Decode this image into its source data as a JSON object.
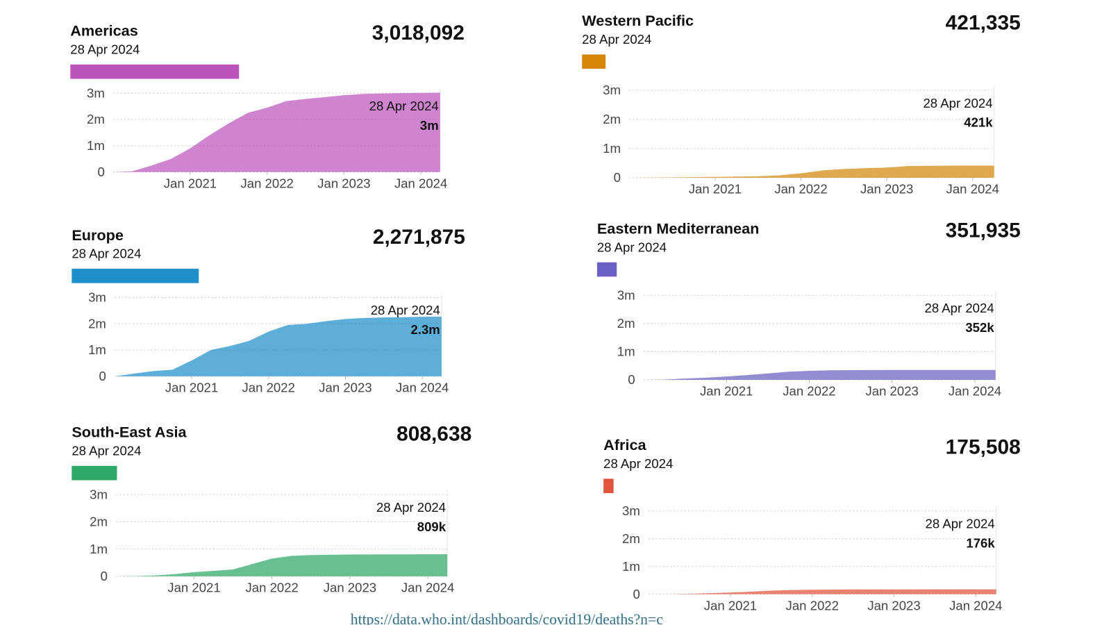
{
  "chart_data": [
    {
      "type": "area",
      "title": "Americas",
      "subtitle": "28 Apr 2024",
      "total": 3018092,
      "total_label": "3,018,092",
      "color": "#bb55bb",
      "x": [
        "2020-01",
        "2020-04",
        "2020-07",
        "2020-10",
        "2021-01",
        "2021-04",
        "2021-07",
        "2021-10",
        "2022-01",
        "2022-04",
        "2022-07",
        "2022-10",
        "2023-01",
        "2023-04",
        "2023-07",
        "2023-10",
        "2024-01",
        "2024-04"
      ],
      "values": [
        0,
        30000,
        250000,
        500000,
        900000,
        1400000,
        1850000,
        2250000,
        2450000,
        2700000,
        2780000,
        2850000,
        2920000,
        2970000,
        2990000,
        3000000,
        3010000,
        3018092
      ],
      "annotation": {
        "date": "28 Apr 2024",
        "label": "3m"
      },
      "xlim": [
        "2020-01",
        "2024-04"
      ],
      "xticks": [
        {
          "value": "2021-01",
          "label": "Jan 2021"
        },
        {
          "value": "2022-01",
          "label": "Jan 2022"
        },
        {
          "value": "2023-01",
          "label": "Jan 2023"
        },
        {
          "value": "2024-01",
          "label": "Jan 2024"
        }
      ],
      "ylim": [
        0,
        3000000
      ],
      "yticks": [
        0,
        {
          "value": 1000000,
          "label": "1m"
        },
        {
          "value": 2000000,
          "label": "2m"
        },
        {
          "value": 3000000,
          "label": "3m"
        }
      ],
      "grid": true
    },
    {
      "type": "area",
      "title": "Europe",
      "subtitle": "28 Apr 2024",
      "total": 2271875,
      "total_label": "2,271,875",
      "color": "#1f8fc9",
      "x": [
        "2020-01",
        "2020-04",
        "2020-07",
        "2020-10",
        "2021-01",
        "2021-04",
        "2021-07",
        "2021-10",
        "2022-01",
        "2022-04",
        "2022-07",
        "2022-10",
        "2023-01",
        "2023-04",
        "2023-07",
        "2023-10",
        "2024-01",
        "2024-04"
      ],
      "values": [
        0,
        100000,
        200000,
        250000,
        600000,
        1000000,
        1150000,
        1350000,
        1700000,
        1950000,
        2000000,
        2100000,
        2180000,
        2220000,
        2240000,
        2250000,
        2265000,
        2271875
      ],
      "annotation": {
        "date": "28 Apr 2024",
        "label": "2.3m"
      },
      "xlim": [
        "2020-01",
        "2024-04"
      ],
      "xticks": [
        {
          "value": "2021-01",
          "label": "Jan 2021"
        },
        {
          "value": "2022-01",
          "label": "Jan 2022"
        },
        {
          "value": "2023-01",
          "label": "Jan 2023"
        },
        {
          "value": "2024-01",
          "label": "Jan 2024"
        }
      ],
      "ylim": [
        0,
        3000000
      ],
      "yticks": [
        0,
        {
          "value": 1000000,
          "label": "1m"
        },
        {
          "value": 2000000,
          "label": "2m"
        },
        {
          "value": 3000000,
          "label": "3m"
        }
      ],
      "grid": true
    },
    {
      "type": "area",
      "title": "South-East Asia",
      "subtitle": "28 Apr 2024",
      "total": 808638,
      "total_label": "808,638",
      "color": "#2ea866",
      "x": [
        "2020-01",
        "2020-04",
        "2020-07",
        "2020-10",
        "2021-01",
        "2021-04",
        "2021-07",
        "2021-10",
        "2022-01",
        "2022-04",
        "2022-07",
        "2022-10",
        "2023-01",
        "2023-04",
        "2023-07",
        "2023-10",
        "2024-01",
        "2024-04"
      ],
      "values": [
        0,
        5000,
        30000,
        80000,
        150000,
        200000,
        250000,
        450000,
        650000,
        750000,
        780000,
        790000,
        800000,
        802000,
        804000,
        806000,
        807000,
        808638
      ],
      "annotation": {
        "date": "28 Apr 2024",
        "label": "809k"
      },
      "xlim": [
        "2020-01",
        "2024-04"
      ],
      "xticks": [
        {
          "value": "2021-01",
          "label": "Jan 2021"
        },
        {
          "value": "2022-01",
          "label": "Jan 2022"
        },
        {
          "value": "2023-01",
          "label": "Jan 2023"
        },
        {
          "value": "2024-01",
          "label": "Jan 2024"
        }
      ],
      "ylim": [
        0,
        3000000
      ],
      "yticks": [
        0,
        {
          "value": 1000000,
          "label": "1m"
        },
        {
          "value": 2000000,
          "label": "2m"
        },
        {
          "value": 3000000,
          "label": "3m"
        }
      ],
      "grid": true
    },
    {
      "type": "area",
      "title": "Western Pacific",
      "subtitle": "28 Apr 2024",
      "total": 421335,
      "total_label": "421,335",
      "color": "#d4860b",
      "x": [
        "2020-01",
        "2020-04",
        "2020-07",
        "2020-10",
        "2021-01",
        "2021-04",
        "2021-07",
        "2021-10",
        "2022-01",
        "2022-04",
        "2022-07",
        "2022-10",
        "2023-01",
        "2023-04",
        "2023-07",
        "2023-10",
        "2024-01",
        "2024-04"
      ],
      "values": [
        0,
        5000,
        10000,
        20000,
        30000,
        40000,
        50000,
        80000,
        150000,
        250000,
        300000,
        330000,
        350000,
        400000,
        410000,
        415000,
        418000,
        421335
      ],
      "annotation": {
        "date": "28 Apr 2024",
        "label": "421k"
      },
      "xlim": [
        "2020-01",
        "2024-04"
      ],
      "xticks": [
        {
          "value": "2021-01",
          "label": "Jan 2021"
        },
        {
          "value": "2022-01",
          "label": "Jan 2022"
        },
        {
          "value": "2023-01",
          "label": "Jan 2023"
        },
        {
          "value": "2024-01",
          "label": "Jan 2024"
        }
      ],
      "ylim": [
        0,
        3000000
      ],
      "yticks": [
        0,
        {
          "value": 1000000,
          "label": "1m"
        },
        {
          "value": 2000000,
          "label": "2m"
        },
        {
          "value": 3000000,
          "label": "3m"
        }
      ],
      "grid": true
    },
    {
      "type": "area",
      "title": "Eastern Mediterranean",
      "subtitle": "28 Apr 2024",
      "total": 351935,
      "total_label": "351,935",
      "color": "#6a5fc2",
      "x": [
        "2020-01",
        "2020-04",
        "2020-07",
        "2020-10",
        "2021-01",
        "2021-04",
        "2021-07",
        "2021-10",
        "2022-01",
        "2022-04",
        "2022-07",
        "2022-10",
        "2023-01",
        "2023-04",
        "2023-07",
        "2023-10",
        "2024-01",
        "2024-04"
      ],
      "values": [
        0,
        10000,
        50000,
        80000,
        120000,
        170000,
        230000,
        290000,
        320000,
        340000,
        345000,
        348000,
        350000,
        350500,
        351000,
        351500,
        351800,
        351935
      ],
      "annotation": {
        "date": "28 Apr 2024",
        "label": "352k"
      },
      "xlim": [
        "2020-01",
        "2024-04"
      ],
      "xticks": [
        {
          "value": "2021-01",
          "label": "Jan 2021"
        },
        {
          "value": "2022-01",
          "label": "Jan 2022"
        },
        {
          "value": "2023-01",
          "label": "Jan 2023"
        },
        {
          "value": "2024-01",
          "label": "Jan 2024"
        }
      ],
      "ylim": [
        0,
        3000000
      ],
      "yticks": [
        0,
        {
          "value": 1000000,
          "label": "1m"
        },
        {
          "value": 2000000,
          "label": "2m"
        },
        {
          "value": 3000000,
          "label": "3m"
        }
      ],
      "grid": true
    },
    {
      "type": "area",
      "title": "Africa",
      "subtitle": "28 Apr 2024",
      "total": 175508,
      "total_label": "175,508",
      "color": "#e0523a",
      "x": [
        "2020-01",
        "2020-04",
        "2020-07",
        "2020-10",
        "2021-01",
        "2021-04",
        "2021-07",
        "2021-10",
        "2022-01",
        "2022-04",
        "2022-07",
        "2022-10",
        "2023-01",
        "2023-04",
        "2023-07",
        "2023-10",
        "2024-01",
        "2024-04"
      ],
      "values": [
        0,
        1000,
        15000,
        40000,
        60000,
        90000,
        130000,
        150000,
        160000,
        165000,
        170000,
        172000,
        174000,
        174500,
        175000,
        175200,
        175400,
        175508
      ],
      "annotation": {
        "date": "28 Apr 2024",
        "label": "176k"
      },
      "xlim": [
        "2020-01",
        "2024-04"
      ],
      "xticks": [
        {
          "value": "2021-01",
          "label": "Jan 2021"
        },
        {
          "value": "2022-01",
          "label": "Jan 2022"
        },
        {
          "value": "2023-01",
          "label": "Jan 2023"
        },
        {
          "value": "2024-01",
          "label": "Jan 2024"
        }
      ],
      "ylim": [
        0,
        3000000
      ],
      "yticks": [
        0,
        {
          "value": 1000000,
          "label": "1m"
        },
        {
          "value": 2000000,
          "label": "2m"
        },
        {
          "value": 3000000,
          "label": "3m"
        }
      ],
      "grid": true
    }
  ],
  "source": "https://data.who.int/dashboards/covid19/deaths?n=c"
}
